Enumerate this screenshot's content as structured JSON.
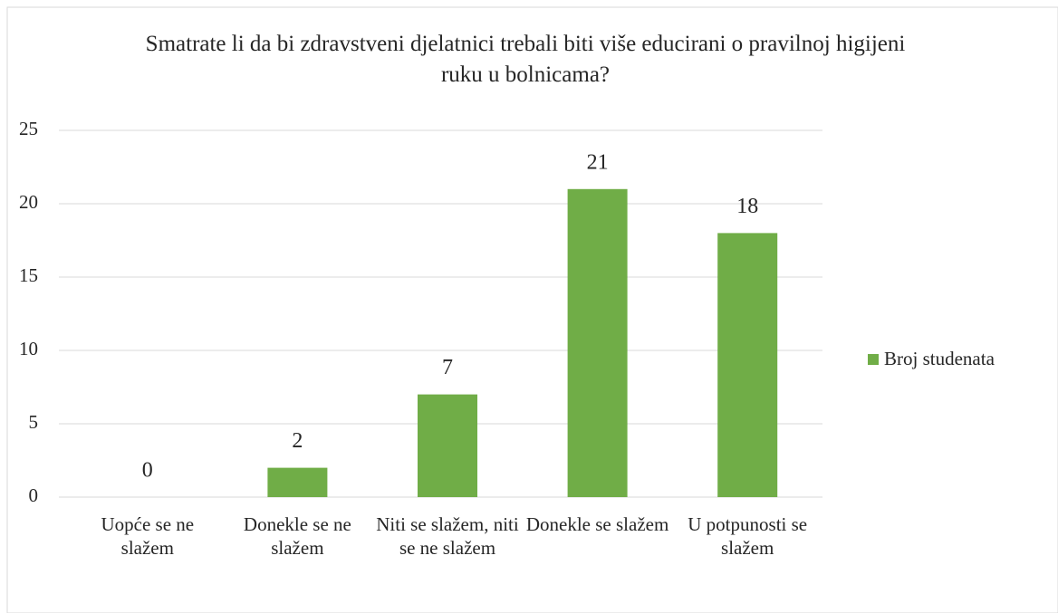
{
  "chart_data": {
    "type": "bar",
    "title": "Smatrate li da bi zdravstveni djelatnici trebali biti više educirani o pravilnoj higijeni ruku u bolnicama?",
    "categories": [
      "Uopće se ne slažem",
      "Donekle se ne slažem",
      "Niti se slažem, niti se ne slažem",
      "Donekle se slažem",
      "U potpunosti se slažem"
    ],
    "series": [
      {
        "name": "Broj studenata",
        "color": "#70ad47",
        "values": [
          0,
          2,
          7,
          21,
          18
        ]
      }
    ],
    "ylim": [
      0,
      25
    ],
    "yticks": [
      0,
      5,
      10,
      15,
      20,
      25
    ],
    "grid": true,
    "legend": "right"
  }
}
